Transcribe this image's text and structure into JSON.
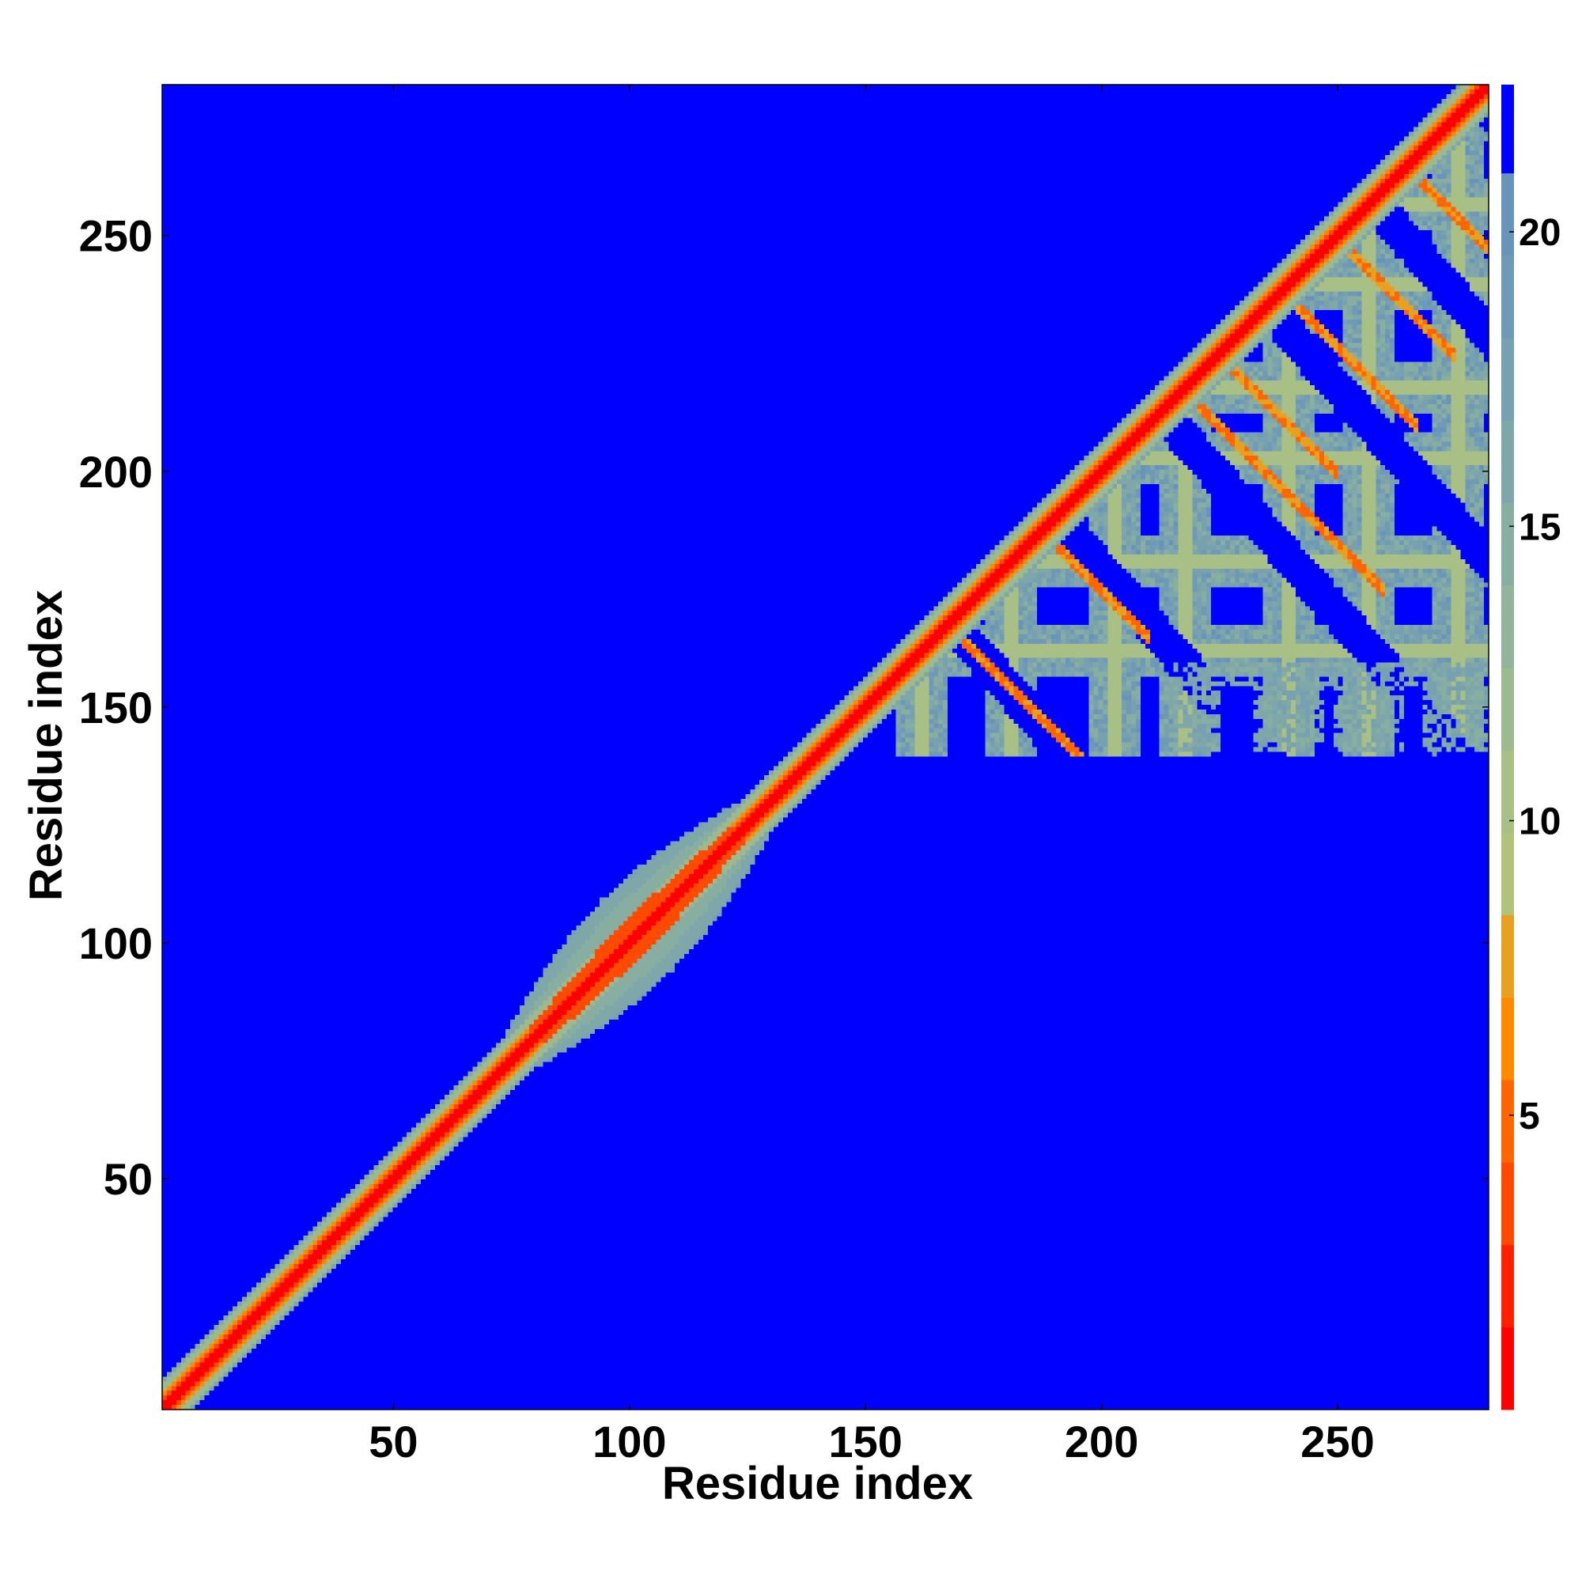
{
  "chart_data": {
    "type": "heatmap",
    "title": "",
    "xlabel": "Residue index",
    "ylabel": "Residue index",
    "xlim": [
      1,
      282
    ],
    "ylim": [
      1,
      282
    ],
    "xticks": [
      50,
      100,
      150,
      200,
      250
    ],
    "yticks": [
      50,
      100,
      150,
      200,
      250
    ],
    "colorbar": {
      "range": [
        0,
        22.5
      ],
      "ticks": [
        5,
        10,
        15,
        20
      ],
      "levels": [
        {
          "min": 0,
          "max": 1.4,
          "color": "#ff0000"
        },
        {
          "min": 1.4,
          "max": 2.8,
          "color": "#ff2000"
        },
        {
          "min": 2.8,
          "max": 4.2,
          "color": "#ff4a00"
        },
        {
          "min": 4.2,
          "max": 5.6,
          "color": "#ff6600"
        },
        {
          "min": 5.6,
          "max": 7.0,
          "color": "#ff8a00"
        },
        {
          "min": 7.0,
          "max": 8.4,
          "color": "#e8a020"
        },
        {
          "min": 8.4,
          "max": 9.8,
          "color": "#b3c27a"
        },
        {
          "min": 9.8,
          "max": 11.2,
          "color": "#a8bf86"
        },
        {
          "min": 11.2,
          "max": 12.6,
          "color": "#9cb98f"
        },
        {
          "min": 12.6,
          "max": 14.0,
          "color": "#92b49a"
        },
        {
          "min": 14.0,
          "max": 15.4,
          "color": "#88aea2"
        },
        {
          "min": 15.4,
          "max": 16.8,
          "color": "#7fa7aa"
        },
        {
          "min": 16.8,
          "max": 18.2,
          "color": "#77a1b0"
        },
        {
          "min": 18.2,
          "max": 19.6,
          "color": "#6f9ab6"
        },
        {
          "min": 19.6,
          "max": 21.0,
          "color": "#6894ba"
        },
        {
          "min": 21.0,
          "max": 22.5,
          "color": "#0000ff"
        }
      ]
    },
    "background_color": "#0000ff",
    "description_values": {
      "diagonal_distance": 0,
      "background_distance": 22.5
    },
    "series": [
      {
        "region": "diagonal",
        "from": 1,
        "to": 282,
        "core_value": 0.5,
        "edge_value": 12
      },
      {
        "region": "helix-bulge",
        "from": 75,
        "to": 128,
        "core_value": 3,
        "edge_value": 13
      },
      {
        "region": "beta-domain",
        "from": 140,
        "to": 282,
        "pattern": "lattice",
        "values": [
          4,
          6,
          13,
          17
        ]
      }
    ]
  }
}
